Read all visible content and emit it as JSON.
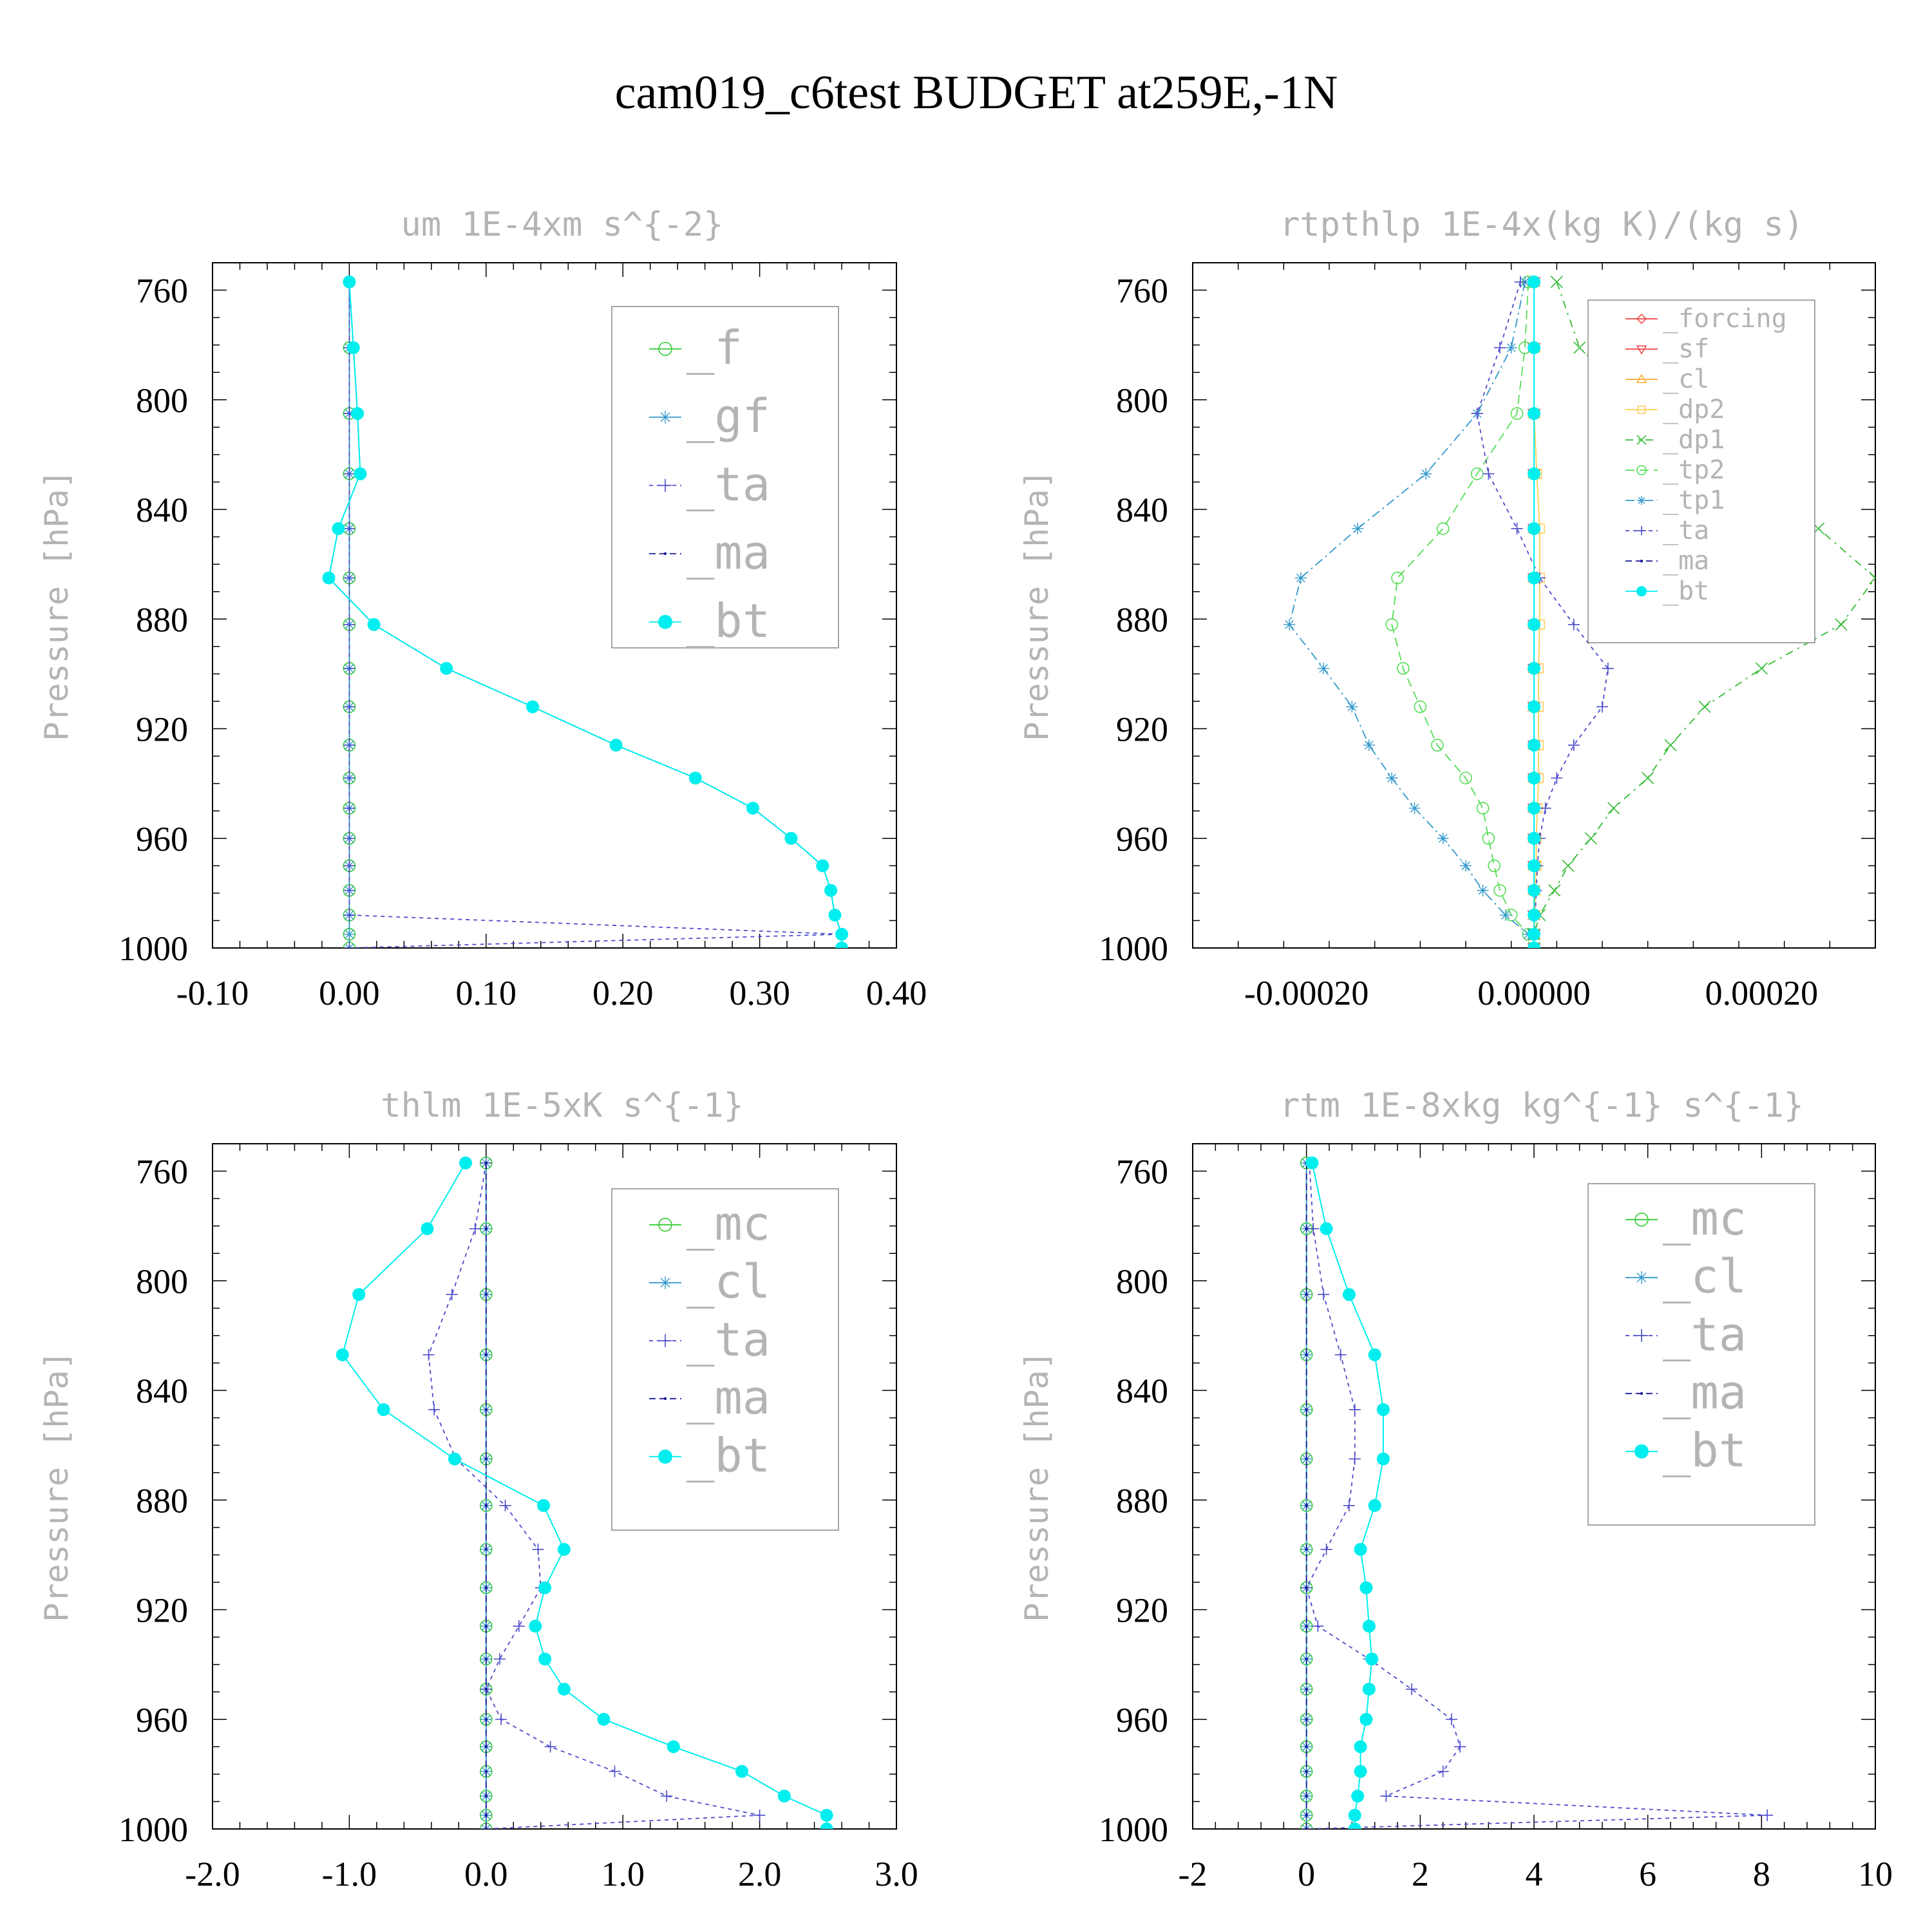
{
  "figure": {
    "title": "cam019_c6test  BUDGET at259E,-1N"
  },
  "chart_data": [
    {
      "type": "line",
      "title": "um  1E-4xm s^{-2}",
      "ylabel": "Pressure [hPa]",
      "xlim": [
        -0.1,
        0.4
      ],
      "ylim": [
        1000,
        750
      ],
      "xticks": [
        -0.1,
        0.0,
        0.1,
        0.2,
        0.3,
        0.4
      ],
      "xtick_labels": [
        "-0.10",
        "0.00",
        "0.10",
        "0.20",
        "0.30",
        "0.40"
      ],
      "yticks": [
        760,
        800,
        840,
        880,
        920,
        960,
        1000
      ],
      "ytick_labels": [
        "760",
        "800",
        "840",
        "880",
        "920",
        "960",
        "1000"
      ],
      "legend": "top-right",
      "pressure": [
        757,
        781,
        805,
        827,
        847,
        865,
        882,
        898,
        912,
        926,
        938,
        949,
        960,
        970,
        979,
        988,
        995,
        1000
      ],
      "series": [
        {
          "name": "_f",
          "color": "#33cc33",
          "marker": "circle",
          "dash": "",
          "values": [
            0,
            0,
            0,
            0,
            0,
            0,
            0,
            0,
            0,
            0,
            0,
            0,
            0,
            0,
            0,
            0,
            0,
            0
          ]
        },
        {
          "name": "_gf",
          "color": "#3399cc",
          "marker": "star",
          "dash": "",
          "values": [
            0,
            0,
            0,
            0,
            0,
            0,
            0,
            0,
            0,
            0,
            0,
            0,
            0,
            0,
            0,
            0,
            0,
            0
          ]
        },
        {
          "name": "_ta",
          "color": "#4b4bcc",
          "marker": "plus",
          "dash": "6,6",
          "values": [
            0,
            0,
            0,
            0,
            0,
            0,
            0,
            0,
            0,
            0,
            0,
            0,
            0,
            0,
            0,
            0,
            0.36,
            0
          ]
        },
        {
          "name": "_ma",
          "color": "#1a1a99",
          "marker": "dot",
          "dash": "10,6",
          "values": [
            0,
            0.003,
            0.006,
            0.008,
            -0.008,
            -0.015,
            0.018,
            0.071,
            0.134,
            0.195,
            0.253,
            0.295,
            0.323,
            0.346,
            0.352,
            0.355,
            0.36,
            0.36
          ]
        },
        {
          "name": "_bt",
          "color": "#00eeee",
          "marker": "filled",
          "dash": "",
          "values": [
            0,
            0.003,
            0.006,
            0.008,
            -0.008,
            -0.015,
            0.018,
            0.071,
            0.134,
            0.195,
            0.253,
            0.295,
            0.323,
            0.346,
            0.352,
            0.355,
            0.36,
            0.36
          ]
        }
      ]
    },
    {
      "type": "line",
      "title": "rtpthlp  1E-4x(kg K)/(kg s)",
      "ylabel": "Pressure [hPa]",
      "xlim": [
        -0.0003,
        0.0003
      ],
      "ylim": [
        1000,
        750
      ],
      "xticks": [
        -0.0002,
        0.0,
        0.0002
      ],
      "xtick_labels": [
        "-0.00020",
        "0.00000",
        "0.00020"
      ],
      "yticks": [
        760,
        800,
        840,
        880,
        920,
        960,
        1000
      ],
      "ytick_labels": [
        "760",
        "800",
        "840",
        "880",
        "920",
        "960",
        "1000"
      ],
      "legend": "top-right",
      "pressure": [
        757,
        781,
        805,
        827,
        847,
        865,
        882,
        898,
        912,
        926,
        938,
        949,
        960,
        970,
        979,
        988,
        995,
        1000
      ],
      "series": [
        {
          "name": "_forcing",
          "color": "#ee4444",
          "marker": "diamond",
          "dash": "",
          "values": [
            0,
            0,
            0,
            0,
            0,
            0,
            0,
            0,
            0,
            0,
            0,
            0,
            0,
            0,
            0,
            0,
            0,
            0
          ]
        },
        {
          "name": "_sf",
          "color": "#ee4444",
          "marker": "tri-down",
          "dash": "",
          "values": [
            0,
            0,
            0,
            0,
            0,
            0,
            0,
            0,
            0,
            0,
            0,
            0,
            0,
            0,
            0,
            0,
            0,
            0
          ]
        },
        {
          "name": "_cl",
          "color": "#ffaa33",
          "marker": "tri-up",
          "dash": "",
          "values": [
            0,
            0,
            0,
            0,
            0,
            0,
            0,
            0,
            0,
            0,
            0,
            0,
            0,
            0,
            0,
            0,
            0,
            0
          ]
        },
        {
          "name": "_dp2",
          "color": "#ffcc55",
          "marker": "square",
          "dash": "",
          "values": [
            0,
            0,
            0,
            2.5e-06,
            5e-06,
            5e-06,
            5e-06,
            4e-06,
            4e-06,
            4e-06,
            4e-06,
            3e-06,
            2e-06,
            2e-06,
            1e-06,
            1e-06,
            0,
            0
          ]
        },
        {
          "name": "_dp1",
          "color": "#33bb33",
          "marker": "x",
          "dash": "12,8,3,8",
          "values": [
            2e-05,
            4e-05,
            0.0001,
            0.00019,
            0.00025,
            0.0003,
            0.00027,
            0.0002,
            0.00015,
            0.00012,
            0.0001,
            7e-05,
            5e-05,
            3e-05,
            1.8e-05,
            5e-06,
            0,
            0
          ]
        },
        {
          "name": "_tp2",
          "color": "#55dd55",
          "marker": "circle",
          "dash": "14,8",
          "values": [
            -5e-06,
            -8e-06,
            -1.5e-05,
            -5e-05,
            -8e-05,
            -0.00012,
            -0.000125,
            -0.000115,
            -0.0001,
            -8.5e-05,
            -6e-05,
            -4.5e-05,
            -4e-05,
            -3.5e-05,
            -3e-05,
            -2e-05,
            -5e-06,
            0
          ]
        },
        {
          "name": "_tp1",
          "color": "#3399cc",
          "marker": "star",
          "dash": "14,6,3,6",
          "values": [
            -8e-06,
            -2e-05,
            -5e-05,
            -9.5e-05,
            -0.000155,
            -0.000205,
            -0.000215,
            -0.000185,
            -0.00016,
            -0.000145,
            -0.000125,
            -0.000105,
            -8e-05,
            -6e-05,
            -4.5e-05,
            -2.5e-05,
            -5e-06,
            0
          ]
        },
        {
          "name": "_ta",
          "color": "#4b4bcc",
          "marker": "plus",
          "dash": "6,6",
          "values": [
            -1.2e-05,
            -3e-05,
            -5e-05,
            -4e-05,
            -1.5e-05,
            5e-06,
            3.5e-05,
            6.5e-05,
            6e-05,
            3.5e-05,
            2e-05,
            1e-05,
            5e-06,
            3e-06,
            2e-06,
            1e-06,
            0,
            0
          ]
        },
        {
          "name": "_ma",
          "color": "#1a1a99",
          "marker": "dot",
          "dash": "10,6",
          "values": [
            0,
            0,
            0,
            0,
            0,
            0,
            0,
            0,
            0,
            0,
            0,
            0,
            0,
            0,
            0,
            0,
            0,
            0
          ]
        },
        {
          "name": "_bt",
          "color": "#00eeee",
          "marker": "filled",
          "dash": "",
          "values": [
            0,
            0,
            0,
            0,
            0,
            0,
            0,
            0,
            0,
            0,
            0,
            0,
            0,
            0,
            0,
            0,
            0,
            0
          ]
        }
      ]
    },
    {
      "type": "line",
      "title": "thlm  1E-5xK s^{-1}",
      "ylabel": "Pressure [hPa]",
      "xlim": [
        -2.0,
        3.0
      ],
      "ylim": [
        1000,
        750
      ],
      "xticks": [
        -2.0,
        -1.0,
        0.0,
        1.0,
        2.0,
        3.0
      ],
      "xtick_labels": [
        "-2.0",
        "-1.0",
        "0.0",
        "1.0",
        "2.0",
        "3.0"
      ],
      "yticks": [
        760,
        800,
        840,
        880,
        920,
        960,
        1000
      ],
      "ytick_labels": [
        "760",
        "800",
        "840",
        "880",
        "920",
        "960",
        "1000"
      ],
      "legend": "top-right",
      "pressure": [
        757,
        781,
        805,
        827,
        847,
        865,
        882,
        898,
        912,
        926,
        938,
        949,
        960,
        970,
        979,
        988,
        995,
        1000
      ],
      "series": [
        {
          "name": "_mc",
          "color": "#33cc33",
          "marker": "circle",
          "dash": "",
          "values": [
            0,
            0,
            0,
            0,
            0,
            0,
            0,
            0,
            0,
            0,
            0,
            0,
            0,
            0,
            0,
            0,
            0,
            0
          ]
        },
        {
          "name": "_cl",
          "color": "#3399cc",
          "marker": "star",
          "dash": "",
          "values": [
            0,
            0,
            0,
            0,
            0,
            0,
            0,
            0,
            0,
            0,
            0,
            0,
            0,
            0,
            0,
            0,
            0,
            0
          ]
        },
        {
          "name": "_ta",
          "color": "#4b4bcc",
          "marker": "plus",
          "dash": "6,6",
          "values": [
            0,
            -0.08,
            -0.25,
            -0.42,
            -0.38,
            -0.22,
            0.14,
            0.38,
            0.4,
            0.24,
            0.1,
            0,
            0.11,
            0.47,
            0.94,
            1.32,
            2.0,
            0
          ]
        },
        {
          "name": "_ma",
          "color": "#1a1a99",
          "marker": "dot",
          "dash": "10,6",
          "values": [
            0,
            0,
            0,
            0,
            0,
            0,
            0,
            0,
            0,
            0,
            0,
            0,
            0,
            0,
            0,
            0,
            0,
            0
          ]
        },
        {
          "name": "_bt",
          "color": "#00eeee",
          "marker": "filled",
          "dash": "",
          "values": [
            -0.15,
            -0.43,
            -0.93,
            -1.05,
            -0.75,
            -0.23,
            0.42,
            0.57,
            0.43,
            0.36,
            0.43,
            0.57,
            0.86,
            1.37,
            1.87,
            2.18,
            2.49,
            2.49
          ]
        }
      ]
    },
    {
      "type": "line",
      "title": "rtm  1E-8xkg kg^{-1} s^{-1}",
      "ylabel": "Pressure [hPa]",
      "xlim": [
        -2,
        10
      ],
      "ylim": [
        1000,
        750
      ],
      "xticks": [
        -2,
        0,
        2,
        4,
        6,
        8,
        10
      ],
      "xtick_labels": [
        "-2",
        "0",
        "2",
        "4",
        "6",
        "8",
        "10"
      ],
      "yticks": [
        760,
        800,
        840,
        880,
        920,
        960,
        1000
      ],
      "ytick_labels": [
        "760",
        "800",
        "840",
        "880",
        "920",
        "960",
        "1000"
      ],
      "legend": "top-right",
      "pressure": [
        757,
        781,
        805,
        827,
        847,
        865,
        882,
        898,
        912,
        926,
        938,
        949,
        960,
        970,
        979,
        988,
        995,
        1000
      ],
      "series": [
        {
          "name": "_mc",
          "color": "#33cc33",
          "marker": "circle",
          "dash": "",
          "values": [
            0,
            0,
            0,
            0,
            0,
            0,
            0,
            0,
            0,
            0,
            0,
            0,
            0,
            0,
            0,
            0,
            0,
            0
          ]
        },
        {
          "name": "_cl",
          "color": "#3399cc",
          "marker": "star",
          "dash": "",
          "values": [
            0,
            0,
            0,
            0,
            0,
            0,
            0,
            0,
            0,
            0,
            0,
            0,
            0,
            0,
            0,
            0,
            0,
            0
          ]
        },
        {
          "name": "_ta",
          "color": "#4b4bcc",
          "marker": "plus",
          "dash": "6,6",
          "values": [
            0.05,
            0.12,
            0.3,
            0.6,
            0.85,
            0.85,
            0.75,
            0.35,
            0,
            0.2,
            1.1,
            1.85,
            2.55,
            2.7,
            2.4,
            1.4,
            8.1,
            0
          ]
        },
        {
          "name": "_ma",
          "color": "#1a1a99",
          "marker": "dot",
          "dash": "10,6",
          "values": [
            0,
            0,
            0,
            0,
            0,
            0,
            0,
            0,
            0,
            0,
            0,
            0,
            0,
            0,
            0,
            0,
            0,
            0
          ]
        },
        {
          "name": "_bt",
          "color": "#00eeee",
          "marker": "filled",
          "dash": "",
          "values": [
            0.1,
            0.35,
            0.75,
            1.2,
            1.35,
            1.35,
            1.2,
            0.95,
            1.05,
            1.1,
            1.15,
            1.1,
            1.05,
            0.95,
            0.95,
            0.9,
            0.85,
            0.85
          ]
        }
      ]
    }
  ]
}
